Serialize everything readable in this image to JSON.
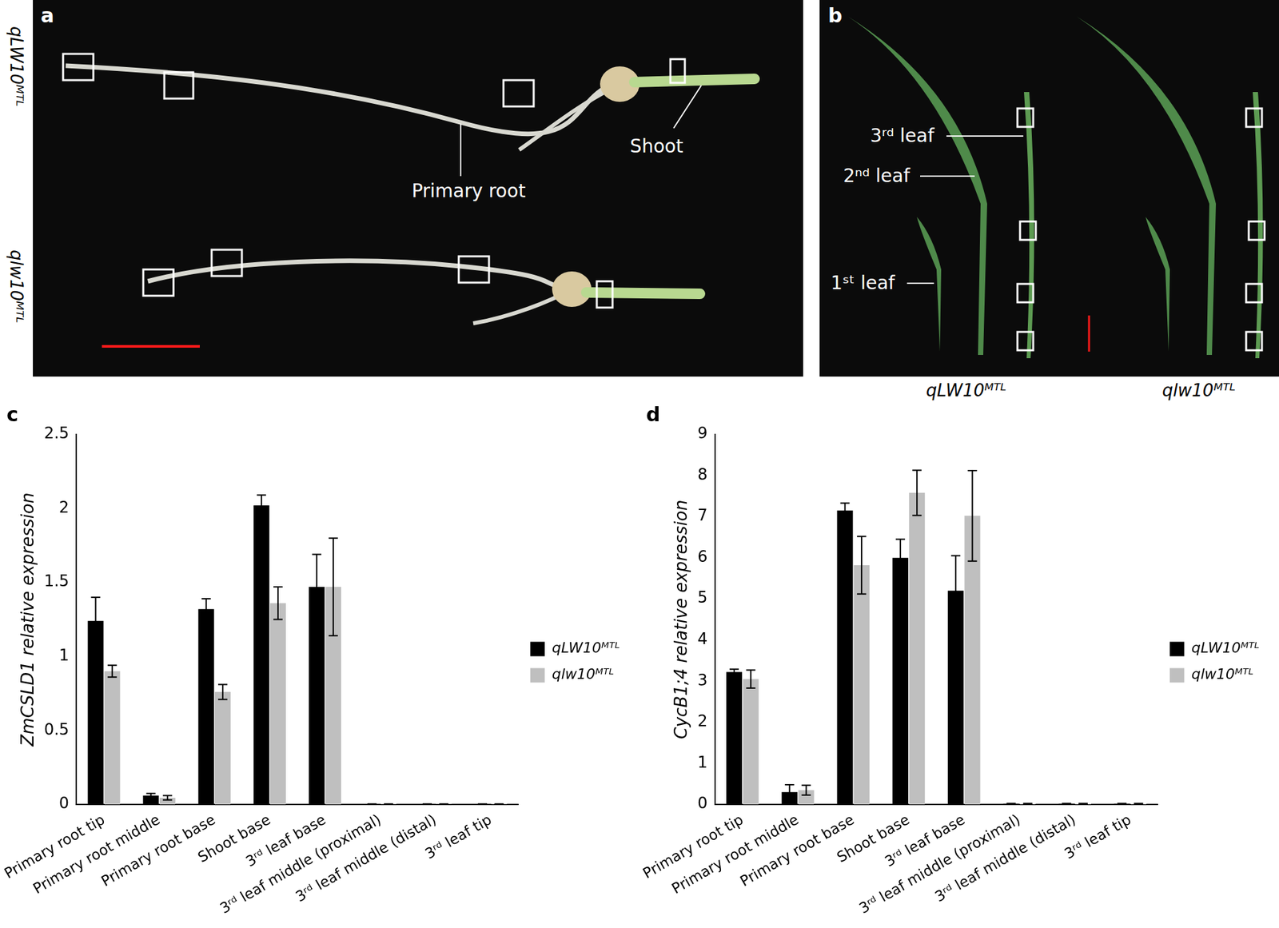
{
  "photo_panels": [
    {
      "panel": "a",
      "row_labels": [
        "qLW10ᴹᵀᴸ",
        "qlw10ᴹᵀᴸ"
      ],
      "annotations": [
        "Primary root",
        "Shoot"
      ]
    },
    {
      "panel": "b",
      "annotations": [
        "3ʳᵈ leaf",
        "2ⁿᵈ leaf",
        "1ˢᵗ leaf"
      ],
      "column_labels": [
        "qLW10ᴹᵀᴸ",
        "qlw10ᴹᵀᴸ"
      ]
    }
  ],
  "chart_data": [
    {
      "type": "bar",
      "title": "c",
      "y_label": "ZmCSLD1 relative expression",
      "categories": [
        "Primary root tip",
        "Primary root middle",
        "Primary root base",
        "Shoot base",
        "3ʳᵈ leaf base",
        "3ʳᵈ leaf middle (proximal)",
        "3ʳᵈ leaf middle (distal)",
        "3ʳᵈ leaf tip"
      ],
      "series": [
        {
          "name": "qLW10ᴹᵀᴸ",
          "color": "#000000",
          "values": [
            1.24,
            0.06,
            1.32,
            2.02,
            1.47,
            0.003,
            0.002,
            0.003
          ],
          "errors": [
            0.16,
            0.015,
            0.07,
            0.07,
            0.22,
            0.001,
            0.001,
            0.001
          ]
        },
        {
          "name": "qlw10ᴹᵀᴸ",
          "color": "#bfbfbf",
          "values": [
            0.9,
            0.045,
            0.76,
            1.36,
            1.47,
            0.003,
            0.002,
            0.003
          ],
          "errors": [
            0.04,
            0.015,
            0.05,
            0.11,
            0.33,
            0.001,
            0.001,
            0.001
          ]
        }
      ],
      "ylim": [
        0,
        2.5
      ],
      "yticks": [
        0,
        0.5,
        1,
        1.5,
        2,
        2.5
      ],
      "grid": false,
      "legend": "right"
    },
    {
      "type": "bar",
      "title": "d",
      "y_label": "CycB1;4 relative expression",
      "categories": [
        "Primary root tip",
        "Primary root middle",
        "Primary root base",
        "Shoot base",
        "3ʳᵈ leaf base",
        "3ʳᵈ leaf middle (proximal)",
        "3ʳᵈ leaf middle (distal)",
        "3ʳᵈ leaf tip"
      ],
      "series": [
        {
          "name": "qLW10ᴹᵀᴸ",
          "color": "#000000",
          "values": [
            3.22,
            0.3,
            7.15,
            6.0,
            5.2,
            0.02,
            0.02,
            0.02
          ],
          "errors": [
            0.07,
            0.18,
            0.18,
            0.45,
            0.85,
            0.005,
            0.005,
            0.005
          ]
        },
        {
          "name": "qlw10ᴹᵀᴸ",
          "color": "#bfbfbf",
          "values": [
            3.05,
            0.35,
            5.82,
            7.58,
            7.02,
            0.02,
            0.02,
            0.02
          ],
          "errors": [
            0.22,
            0.12,
            0.7,
            0.55,
            1.1,
            0.005,
            0.005,
            0.005
          ]
        }
      ],
      "ylim": [
        0,
        9
      ],
      "yticks": [
        0,
        1,
        2,
        3,
        4,
        5,
        6,
        7,
        8,
        9
      ],
      "grid": false,
      "legend": "right"
    }
  ]
}
